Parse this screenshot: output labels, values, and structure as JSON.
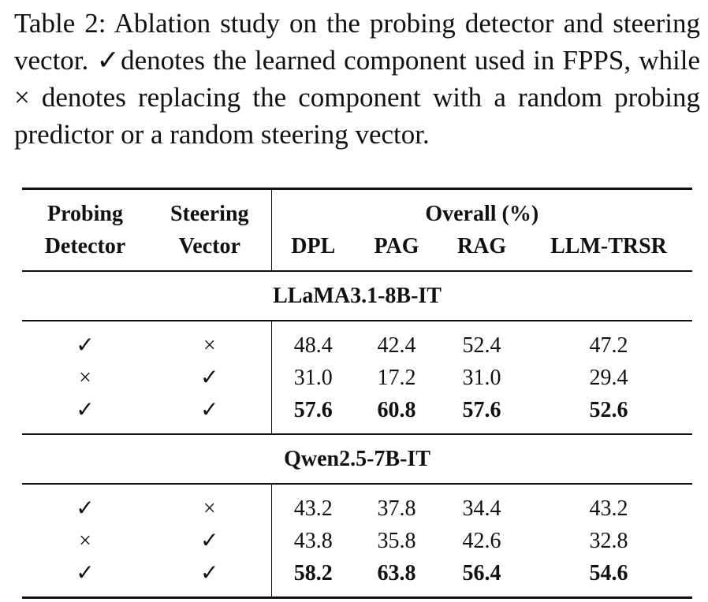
{
  "caption": "Table 2: Ablation study on the probing detector and steering vector. ✓denotes the learned component used in FPPS, while × denotes replacing the component with a random probing predictor or a random steering vector.",
  "table": {
    "header": {
      "row1": [
        "Probing",
        "Steering",
        "Overall (%)"
      ],
      "row2": [
        "Detector",
        "Vector",
        "DPL",
        "PAG",
        "RAG",
        "LLM-TRSR"
      ]
    },
    "groups": [
      {
        "name": "LLaMA3.1-8B-IT",
        "rows": [
          [
            "✓",
            "×",
            "48.4",
            "42.4",
            "52.4",
            "47.2"
          ],
          [
            "×",
            "✓",
            "31.0",
            "17.2",
            "31.0",
            "29.4"
          ],
          [
            "✓",
            "✓",
            "57.6",
            "60.8",
            "57.6",
            "52.6"
          ]
        ]
      },
      {
        "name": "Qwen2.5-7B-IT",
        "rows": [
          [
            "✓",
            "×",
            "43.2",
            "37.8",
            "34.4",
            "43.2"
          ],
          [
            "×",
            "✓",
            "43.8",
            "35.8",
            "42.6",
            "32.8"
          ],
          [
            "✓",
            "✓",
            "58.2",
            "63.8",
            "56.4",
            "54.6"
          ]
        ]
      }
    ]
  }
}
